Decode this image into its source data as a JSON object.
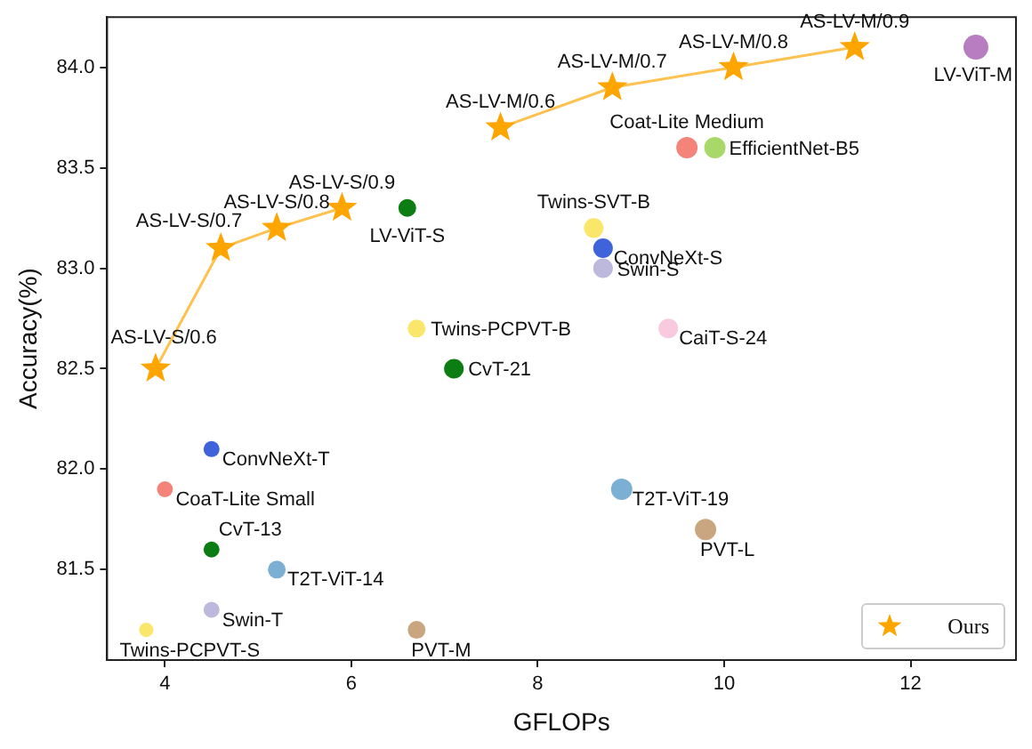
{
  "chart_data": {
    "type": "bubble",
    "xlabel": "GFLOPs",
    "ylabel": "Accuracy(%)",
    "xlim": [
      3.38,
      13.13
    ],
    "xticks": [
      4,
      6,
      8,
      10,
      12
    ],
    "ylim": [
      81.05,
      84.25
    ],
    "yticks": [
      {
        "value": 81.5,
        "label": "81.5"
      },
      {
        "value": 82,
        "label": "82.0"
      },
      {
        "value": 82.5,
        "label": "82.5"
      },
      {
        "value": 83,
        "label": "83.0"
      },
      {
        "value": 83.5,
        "label": "83.5"
      },
      {
        "value": 84,
        "label": "84.0"
      }
    ],
    "grid": false,
    "legend": "bottom right",
    "line_style": "solid",
    "series": [
      {
        "name": "Ours",
        "type": "line",
        "marker": "star",
        "color": "#ffa500",
        "x": [
          3.9,
          4.6,
          5.2,
          5.9
        ],
        "values": [
          82.5,
          83.1,
          83.2,
          83.3
        ]
      },
      {
        "type": "line",
        "marker": "star",
        "color": "#ffa500",
        "x": [
          7.6,
          8.8,
          10.1,
          11.4
        ],
        "values": [
          83.7,
          83.9,
          84.0,
          84.1
        ]
      },
      {
        "x": [
          12.7,
          9.6,
          9.9,
          8.6,
          8.7,
          8.7,
          9.4,
          6.6,
          6.7,
          7.1,
          4.5,
          4.0,
          4.5,
          5.2,
          4.5,
          3.8,
          6.7,
          8.9,
          9.8
        ],
        "values": [
          84.1,
          83.6,
          83.6,
          83.2,
          83.1,
          83.0,
          82.7,
          83.3,
          82.7,
          82.5,
          82.1,
          81.9,
          81.6,
          81.5,
          81.3,
          81.2,
          81.2,
          81.9,
          81.7
        ],
        "sizes": [
          1,
          0.73,
          0.73,
          0.62,
          0.62,
          0.62,
          0.62,
          0.51,
          0.51,
          0.62,
          0.41,
          0.41,
          0.41,
          0.51,
          0.41,
          0.33,
          0.51,
          0.73,
          0.73
        ],
        "colors": [
          "#b77dc0",
          "#f4837a",
          "#a8d86a",
          "#f9e66b",
          "#3f63db",
          "#bdb9dc",
          "#f9c9df",
          "#0b7d12",
          "#f9e66b",
          "#0b7d12",
          "#3f63db",
          "#f4837a",
          "#0b7d12",
          "#7cafd4",
          "#bdb9dc",
          "#f9e66b",
          "#c9a67f",
          "#7cafd4",
          "#c9a67f"
        ]
      }
    ],
    "annotations": [
      {
        "text": "AS-LV-S/0.6",
        "x": 3.9,
        "y": 82.5
      },
      {
        "text": "AS-LV-S/0.7",
        "x": 4.6,
        "y": 83.1
      },
      {
        "text": "AS-LV-S/0.8",
        "x": 5.2,
        "y": 83.2
      },
      {
        "text": "AS-LV-S/0.9",
        "x": 5.9,
        "y": 83.3
      },
      {
        "text": "AS-LV-M/0.6",
        "x": 7.6,
        "y": 83.7
      },
      {
        "text": "AS-LV-M/0.7",
        "x": 8.8,
        "y": 83.9
      },
      {
        "text": "AS-LV-M/0.8",
        "x": 10.1,
        "y": 84.0
      },
      {
        "text": "AS-LV-M/0.9",
        "x": 11.4,
        "y": 84.1
      },
      {
        "text": "LV-ViT-M",
        "x": 12.7,
        "y": 84.1
      },
      {
        "text": "Coat-Lite Medium",
        "x": 9.6,
        "y": 83.6
      },
      {
        "text": "EfficientNet-B5",
        "x": 9.9,
        "y": 83.6
      },
      {
        "text": "Twins-SVT-B",
        "x": 8.6,
        "y": 83.2
      },
      {
        "text": "ConvNeXt-S",
        "x": 8.7,
        "y": 83.1
      },
      {
        "text": "Swin-S",
        "x": 8.7,
        "y": 83.0
      },
      {
        "text": "CaiT-S-24",
        "x": 9.4,
        "y": 82.7
      },
      {
        "text": "LV-ViT-S",
        "x": 6.6,
        "y": 83.3
      },
      {
        "text": "Twins-PCPVT-B",
        "x": 6.7,
        "y": 82.7
      },
      {
        "text": "CvT-21",
        "x": 7.1,
        "y": 82.5
      },
      {
        "text": "ConvNeXt-T",
        "x": 4.5,
        "y": 82.1
      },
      {
        "text": "CoaT-Lite Small",
        "x": 4.0,
        "y": 81.9
      },
      {
        "text": "CvT-13",
        "x": 4.5,
        "y": 81.6
      },
      {
        "text": "T2T-ViT-14",
        "x": 5.2,
        "y": 81.5
      },
      {
        "text": "Swin-T",
        "x": 4.5,
        "y": 81.3
      },
      {
        "text": "Twins-PCPVT-S",
        "x": 3.8,
        "y": 81.2
      },
      {
        "text": "PVT-M",
        "x": 6.7,
        "y": 81.2
      },
      {
        "text": "T2T-ViT-19",
        "x": 8.9,
        "y": 81.9
      },
      {
        "text": "PVT-L",
        "x": 9.8,
        "y": 81.7
      }
    ]
  }
}
